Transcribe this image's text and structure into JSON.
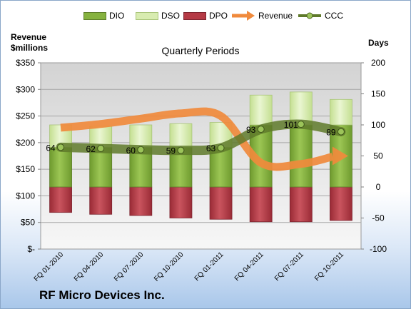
{
  "legend": {
    "dio": "DIO",
    "dso": "DSO",
    "dpo": "DPO",
    "revenue": "Revenue",
    "ccc": "CCC"
  },
  "left_axis_label": "Revenue $millions",
  "left_axis_line1": "Revenue",
  "left_axis_line2": "$millions",
  "right_axis_label": "Days",
  "title": "Quarterly Periods",
  "company": "RF Micro Devices Inc.",
  "colors": {
    "dio": "#86b23f",
    "dso": "#d8ecb0",
    "dpo": "#b53a45",
    "revenue": "#f08a3c",
    "ccc": "#5f7a2a"
  },
  "chart_data": {
    "type": "bar",
    "title": "Quarterly Periods",
    "categories": [
      "FQ 01-2010",
      "FQ 04-2010",
      "FQ 07-2010",
      "FQ 10-2010",
      "FQ 01-2011",
      "FQ 04-2011",
      "FQ 07-2011",
      "FQ 10-2011"
    ],
    "left_axis": {
      "label": "Revenue $millions",
      "ylim": [
        0,
        350
      ],
      "ticks": [
        "$-",
        "$50",
        "$100",
        "$150",
        "$200",
        "$250",
        "$300",
        "$350"
      ]
    },
    "right_axis": {
      "label": "Days",
      "ylim": [
        -100,
        200
      ],
      "ticks": [
        "-100",
        "-50",
        "0",
        "50",
        "100",
        "150",
        "200"
      ]
    },
    "series": [
      {
        "name": "DIO",
        "type": "stacked-bar",
        "axis": "right",
        "values": [
          64,
          64,
          64,
          64,
          64,
          100,
          100,
          100
        ]
      },
      {
        "name": "DSO",
        "type": "stacked-bar",
        "axis": "right",
        "values": [
          36,
          34,
          36,
          38,
          40,
          48,
          53,
          41
        ]
      },
      {
        "name": "DPO",
        "type": "negative-bar",
        "axis": "right",
        "values": [
          -41,
          -44,
          -46,
          -50,
          -52,
          -56,
          -56,
          -54
        ]
      },
      {
        "name": "Revenue",
        "type": "line",
        "axis": "left",
        "values": [
          228,
          235,
          245,
          255,
          250,
          162,
          160,
          175
        ]
      },
      {
        "name": "CCC",
        "type": "line",
        "axis": "right",
        "values": [
          64,
          62,
          60,
          59,
          63,
          93,
          101,
          89
        ]
      }
    ],
    "data_labels": [
      "64",
      "62",
      "60",
      "59",
      "63",
      "93",
      "101",
      "89"
    ],
    "grid": true,
    "legend_position": "top"
  }
}
